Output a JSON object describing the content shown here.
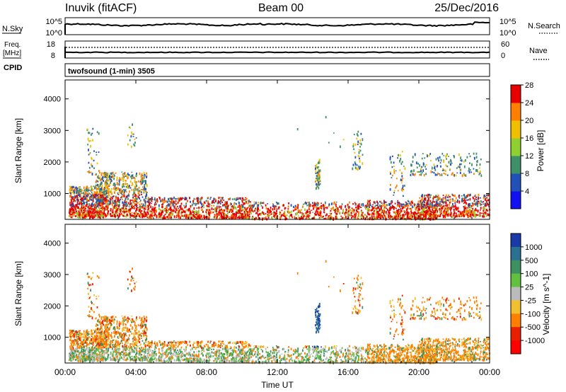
{
  "header": {
    "station": "Inuvik (fitACF)",
    "beam": "Beam 00",
    "date": "25/Dec/2016"
  },
  "top_panels": {
    "nsky": {
      "label": "N.Sky",
      "ticks": [
        "10^5",
        "10^0"
      ]
    },
    "nsearch": {
      "label": "N.Search",
      "ticks": [
        "10^5",
        "10^0"
      ]
    },
    "freq": {
      "label": "Freq.",
      "unit": "[MHz]",
      "ticks": [
        "18",
        "8"
      ]
    },
    "nave": {
      "label": "Nave",
      "ticks": [
        "60",
        "0"
      ]
    },
    "cpid": {
      "label": "CPID",
      "program": "twofsound (1-min) 3505"
    }
  },
  "chart_data": [
    {
      "type": "heatmap",
      "name": "power",
      "ylabel": "Slant Range [km]",
      "yticks": [
        1000,
        2000,
        3000,
        4000
      ],
      "ylim": [
        180,
        4600
      ],
      "xticks": [
        "00:00",
        "04:00",
        "08:00",
        "12:00",
        "16:00",
        "20:00",
        "00:00"
      ],
      "xlim_hours": [
        0,
        24
      ],
      "colorbar": {
        "label": "Power [dB]",
        "ticks": [
          "4",
          "8",
          "12",
          "16",
          "20",
          "24",
          "28"
        ],
        "colors": [
          "#1010f0",
          "#2050b8",
          "#3f8f6a",
          "#8fd030",
          "#f0c000",
          "#ff8000",
          "#e80000"
        ]
      }
    },
    {
      "type": "heatmap",
      "name": "velocity",
      "ylabel": "Slant Range [km]",
      "yticks": [
        1000,
        2000,
        3000,
        4000
      ],
      "ylim": [
        180,
        4600
      ],
      "xticks": [
        "00:00",
        "04:00",
        "08:00",
        "12:00",
        "16:00",
        "20:00",
        "00:00"
      ],
      "xlim_hours": [
        0,
        24
      ],
      "xlabel": "Time UT",
      "colorbar": {
        "label": "Velocity [m s^-1]",
        "ticks": [
          "1000",
          "500",
          "100",
          "25",
          "-25",
          "-100",
          "-500",
          "-1000"
        ],
        "colors": [
          "#1a3aa8",
          "#2a7090",
          "#3f9060",
          "#60c040",
          "#bbbbbb",
          "#f0c030",
          "#ff8000",
          "#e82000",
          "#ff0000"
        ]
      }
    }
  ]
}
